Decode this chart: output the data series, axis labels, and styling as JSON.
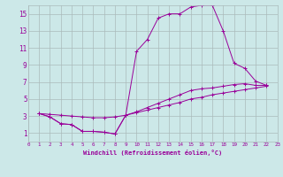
{
  "xlabel": "Windchill (Refroidissement éolien,°C)",
  "bg_color": "#cce8e8",
  "line_color": "#990099",
  "grid_color": "#aabbbb",
  "xlim": [
    0,
    23
  ],
  "ylim": [
    0,
    16
  ],
  "xticks": [
    0,
    1,
    2,
    3,
    4,
    5,
    6,
    7,
    8,
    9,
    10,
    11,
    12,
    13,
    14,
    15,
    16,
    17,
    18,
    19,
    20,
    21,
    22,
    23
  ],
  "yticks": [
    1,
    3,
    5,
    7,
    9,
    11,
    13,
    15
  ],
  "series": [
    [
      3.3,
      2.9,
      2.1,
      2.0,
      1.2,
      1.2,
      1.1,
      0.9,
      3.1,
      10.6,
      12.0,
      14.5,
      15.0,
      15.0,
      15.8,
      16.0,
      16.0,
      13.0,
      9.2,
      8.6,
      7.1,
      6.6
    ],
    [
      3.3,
      2.9,
      2.1,
      2.0,
      1.2,
      1.2,
      1.1,
      0.9,
      3.1,
      3.5,
      4.0,
      4.5,
      5.0,
      5.5,
      6.0,
      6.2,
      6.3,
      6.5,
      6.7,
      6.8,
      6.6,
      6.6
    ],
    [
      3.3,
      3.2,
      3.1,
      3.0,
      2.9,
      2.8,
      2.8,
      2.9,
      3.1,
      3.4,
      3.7,
      4.0,
      4.3,
      4.6,
      5.0,
      5.2,
      5.5,
      5.7,
      5.9,
      6.1,
      6.3,
      6.5
    ]
  ],
  "x_start": 1
}
